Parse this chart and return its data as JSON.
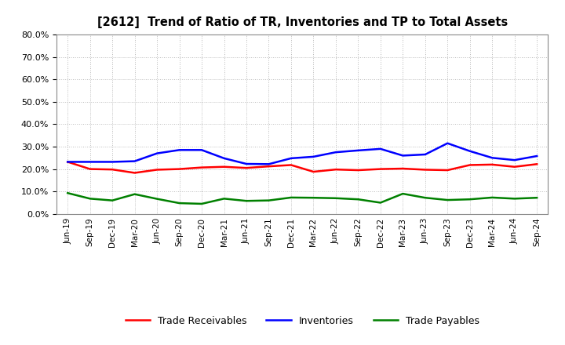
{
  "title": "[2612]  Trend of Ratio of TR, Inventories and TP to Total Assets",
  "x_labels": [
    "Jun-19",
    "Sep-19",
    "Dec-19",
    "Mar-20",
    "Jun-20",
    "Sep-20",
    "Dec-20",
    "Mar-21",
    "Jun-21",
    "Sep-21",
    "Dec-21",
    "Mar-22",
    "Jun-22",
    "Sep-22",
    "Dec-22",
    "Mar-23",
    "Jun-23",
    "Sep-23",
    "Dec-23",
    "Mar-24",
    "Jun-24",
    "Sep-24"
  ],
  "trade_receivables": [
    0.232,
    0.2,
    0.198,
    0.183,
    0.197,
    0.2,
    0.207,
    0.21,
    0.205,
    0.212,
    0.218,
    0.188,
    0.198,
    0.195,
    0.2,
    0.202,
    0.197,
    0.195,
    0.218,
    0.22,
    0.21,
    0.222
  ],
  "inventories": [
    0.232,
    0.232,
    0.232,
    0.235,
    0.27,
    0.285,
    0.285,
    0.248,
    0.223,
    0.222,
    0.248,
    0.255,
    0.275,
    0.283,
    0.29,
    0.26,
    0.265,
    0.315,
    0.28,
    0.25,
    0.24,
    0.258
  ],
  "trade_payables": [
    0.093,
    0.068,
    0.06,
    0.088,
    0.067,
    0.048,
    0.045,
    0.068,
    0.058,
    0.06,
    0.073,
    0.072,
    0.07,
    0.065,
    0.05,
    0.09,
    0.072,
    0.062,
    0.065,
    0.073,
    0.068,
    0.072
  ],
  "ylim": [
    0.0,
    0.8
  ],
  "yticks": [
    0.0,
    0.1,
    0.2,
    0.3,
    0.4,
    0.5,
    0.6,
    0.7,
    0.8
  ],
  "line_colors": {
    "trade_receivables": "#ff0000",
    "inventories": "#0000ff",
    "trade_payables": "#008000"
  },
  "legend_labels": [
    "Trade Receivables",
    "Inventories",
    "Trade Payables"
  ],
  "background_color": "#ffffff",
  "grid_color": "#bbbbbb"
}
